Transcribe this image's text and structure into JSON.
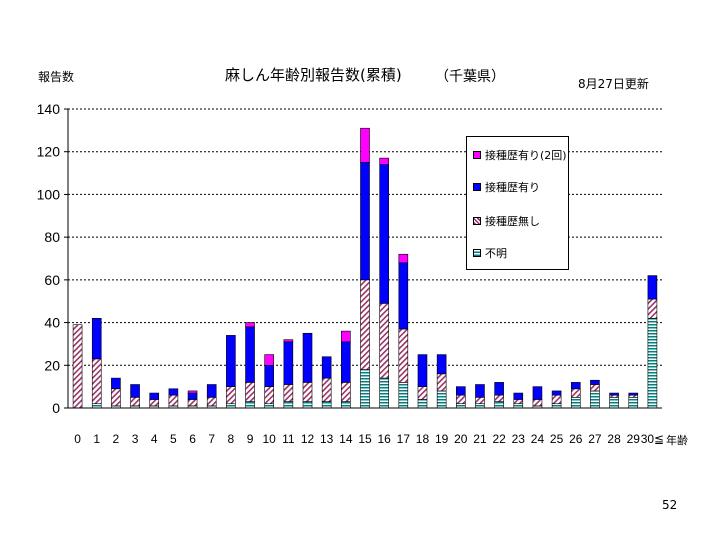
{
  "header": {
    "ylabel": "報告数",
    "title": "麻しん年齢別報告数(累積)",
    "subtitle": "（千葉県）",
    "updated": "8月27日更新"
  },
  "footer": {
    "page_number": "52"
  },
  "chart_data": {
    "type": "bar",
    "stacked": true,
    "title": "麻しん年齢別報告数(累積)",
    "ylabel": "報告数",
    "xlabel": "年齢",
    "ylim": [
      0,
      140
    ],
    "yticks": [
      0,
      20,
      40,
      60,
      80,
      100,
      120,
      140
    ],
    "grid": "horizontal dotted",
    "legend_position": "top-right",
    "categories": [
      "0",
      "1",
      "2",
      "3",
      "4",
      "5",
      "6",
      "7",
      "8",
      "9",
      "10",
      "11",
      "12",
      "13",
      "14",
      "15",
      "16",
      "17",
      "18",
      "19",
      "20",
      "21",
      "22",
      "23",
      "24",
      "25",
      "26",
      "27",
      "28",
      "29",
      "30≦"
    ],
    "series": [
      {
        "name": "不明",
        "color": "#008080",
        "pattern": "horizontal-lines",
        "values": [
          0,
          2,
          1,
          1,
          1,
          1,
          1,
          1,
          2,
          3,
          2,
          3,
          3,
          3,
          3,
          18,
          14,
          12,
          4,
          8,
          2,
          2,
          3,
          2,
          1,
          2,
          5,
          8,
          5,
          5,
          42
        ]
      },
      {
        "name": "接種歴無し",
        "color": "#993366",
        "pattern": "diagonal-hatch",
        "values": [
          39,
          21,
          8,
          4,
          3,
          5,
          3,
          4,
          8,
          9,
          8,
          8,
          9,
          11,
          9,
          42,
          35,
          25,
          6,
          8,
          4,
          3,
          3,
          2,
          3,
          4,
          4,
          3,
          1,
          1,
          9
        ]
      },
      {
        "name": "接種歴有り",
        "color": "#0000ff",
        "pattern": "solid",
        "values": [
          0,
          19,
          5,
          6,
          3,
          3,
          3,
          6,
          24,
          26,
          10,
          20,
          23,
          10,
          19,
          55,
          65,
          31,
          15,
          9,
          4,
          6,
          6,
          3,
          6,
          2,
          3,
          2,
          1,
          1,
          11
        ]
      },
      {
        "name": "接種歴有り(2回)",
        "color": "#ff00ff",
        "pattern": "solid",
        "values": [
          0,
          0,
          0,
          0,
          0,
          0,
          1,
          0,
          0,
          2,
          5,
          1,
          0,
          0,
          5,
          16,
          3,
          4,
          0,
          0,
          0,
          0,
          0,
          0,
          0,
          0,
          0,
          0,
          0,
          0,
          0
        ]
      }
    ]
  }
}
